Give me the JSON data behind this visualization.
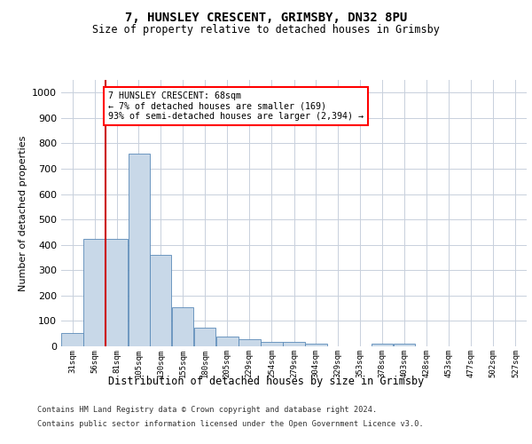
{
  "title_line1": "7, HUNSLEY CRESCENT, GRIMSBY, DN32 8PU",
  "title_line2": "Size of property relative to detached houses in Grimsby",
  "xlabel": "Distribution of detached houses by size in Grimsby",
  "ylabel": "Number of detached properties",
  "footer_line1": "Contains HM Land Registry data © Crown copyright and database right 2024.",
  "footer_line2": "Contains public sector information licensed under the Open Government Licence v3.0.",
  "annotation_line1": "7 HUNSLEY CRESCENT: 68sqm",
  "annotation_line2": "← 7% of detached houses are smaller (169)",
  "annotation_line3": "93% of semi-detached houses are larger (2,394) →",
  "bar_color": "#c8d8e8",
  "bar_edge_color": "#5a8ab8",
  "grid_color": "#c8d0dc",
  "ref_line_color": "#cc0000",
  "ref_line_x": 68,
  "categories": [
    "31sqm",
    "56sqm",
    "81sqm",
    "105sqm",
    "130sqm",
    "155sqm",
    "180sqm",
    "205sqm",
    "229sqm",
    "254sqm",
    "279sqm",
    "304sqm",
    "329sqm",
    "353sqm",
    "378sqm",
    "403sqm",
    "428sqm",
    "453sqm",
    "477sqm",
    "502sqm",
    "527sqm"
  ],
  "bin_edges": [
    18.5,
    43.5,
    68.5,
    93.5,
    117.5,
    142.5,
    167.5,
    192.5,
    217.5,
    242.5,
    267.5,
    292.5,
    316.5,
    341.5,
    366.5,
    391.5,
    416.5,
    441.5,
    466.5,
    491.5,
    516.5,
    541.5
  ],
  "values": [
    52,
    425,
    425,
    760,
    360,
    155,
    75,
    40,
    27,
    18,
    18,
    10,
    0,
    0,
    10,
    10,
    0,
    0,
    0,
    0,
    0
  ],
  "ylim": [
    0,
    1050
  ],
  "yticks": [
    0,
    100,
    200,
    300,
    400,
    500,
    600,
    700,
    800,
    900,
    1000
  ]
}
